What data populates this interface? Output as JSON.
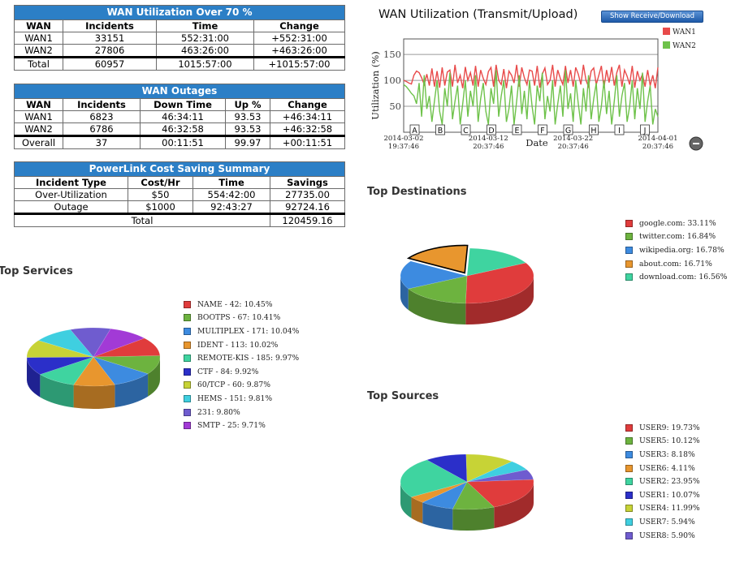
{
  "utilization_table": {
    "title": "WAN Utilization Over 70 %",
    "headers": [
      "WAN",
      "Incidents",
      "Time",
      "Change"
    ],
    "rows": [
      [
        "WAN1",
        "33151",
        "552:31:00",
        "+552:31:00"
      ],
      [
        "WAN2",
        "27806",
        "463:26:00",
        "+463:26:00"
      ],
      [
        "Total",
        "60957",
        "1015:57:00",
        "+1015:57:00"
      ]
    ]
  },
  "outages_table": {
    "title": "WAN Outages",
    "headers": [
      "WAN",
      "Incidents",
      "Down Time",
      "Up %",
      "Change"
    ],
    "rows": [
      [
        "WAN1",
        "6823",
        "46:34:11",
        "93.53",
        "+46:34:11"
      ],
      [
        "WAN2",
        "6786",
        "46:32:58",
        "93.53",
        "+46:32:58"
      ],
      [
        "Overall",
        "37",
        "00:11:51",
        "99.97",
        "+00:11:51"
      ]
    ]
  },
  "cost_table": {
    "title": "PowerLink Cost Saving Summary",
    "headers": [
      "Incident Type",
      "Cost/Hr",
      "Time",
      "Savings"
    ],
    "rows": [
      [
        "Over-Utilization",
        "$50",
        "554:42:00",
        "27735.00"
      ],
      [
        "Outage",
        "$1000",
        "92:43:27",
        "92724.16"
      ]
    ],
    "total_label": "Total",
    "total_value": "120459.16"
  },
  "line_chart": {
    "button_label": "Show Receive/Download",
    "zoom_icon": "minus-circle-icon"
  },
  "colors": {
    "wan1": "#e84a4a",
    "wan2": "#6ec24a",
    "table_header": "#2c7fc6"
  },
  "chart_data": [
    {
      "type": "line",
      "title": "WAN Utilization (Transmit/Upload)",
      "xlabel": "Date",
      "ylabel": "Utilization (%)",
      "ylim": [
        0,
        180
      ],
      "yticks": [
        "50",
        "100",
        "150"
      ],
      "xticks": [
        "2014-03-02\n19:37:46",
        "2014-03-12\n20:37:46",
        "2014-03-22\n20:37:46",
        "2014-04-01\n20:37:46"
      ],
      "x_range": [
        "2014-03-02",
        "2014-04-01"
      ],
      "grid": true,
      "legend_position": "top-right",
      "annotations": [
        "A",
        "B",
        "C",
        "D",
        "E",
        "F",
        "G",
        "H",
        "I",
        "J"
      ],
      "series": [
        {
          "name": "WAN1",
          "values": [
            100,
            98,
            95,
            93,
            110,
            118,
            115,
            105,
            92,
            112,
            90,
            123,
            88,
            118,
            86,
            125,
            90,
            116,
            120,
            88,
            130,
            95,
            110,
            85,
            126,
            100,
            115,
            90,
            128,
            88,
            120,
            104,
            92,
            117,
            125,
            88,
            130,
            100,
            92,
            122,
            85,
            118,
            110,
            95,
            130,
            88,
            125,
            105,
            92,
            120,
            118,
            90,
            128,
            86,
            112,
            124,
            92,
            100,
            130,
            88,
            120,
            104,
            92,
            128,
            95,
            120,
            88,
            125,
            112,
            92,
            130,
            100,
            88,
            118,
            124,
            92,
            110,
            128,
            86,
            120,
            96,
            126,
            90,
            115,
            130,
            88,
            120,
            108,
            92,
            128,
            86,
            118,
            100,
            112,
            88,
            120,
            90,
            110,
            85,
            125
          ]
        },
        {
          "name": "WAN2",
          "values": [
            92,
            88,
            82,
            75,
            70,
            55,
            95,
            30,
            110,
            45,
            70,
            20,
            60,
            100,
            40,
            15,
            85,
            50,
            115,
            25,
            60,
            90,
            15,
            55,
            100,
            30,
            80,
            50,
            110,
            20,
            65,
            95,
            40,
            15,
            85,
            55,
            120,
            30,
            70,
            100,
            20,
            45,
            90,
            15,
            60,
            110,
            35,
            80,
            25,
            100,
            50,
            15,
            90,
            60,
            115,
            25,
            70,
            40,
            100,
            15,
            55,
            90,
            30,
            120,
            45,
            75,
            20,
            100,
            55,
            15,
            85,
            40,
            110,
            25,
            65,
            95,
            20,
            50,
            100,
            35,
            80,
            15,
            60,
            110,
            30,
            70,
            95,
            20,
            50,
            100,
            25,
            85,
            45,
            115,
            20,
            60,
            90,
            15,
            45,
            30
          ]
        }
      ]
    },
    {
      "type": "pie",
      "title": "Top Services",
      "labels": [
        "NAME - 42: 10.45%",
        "BOOTPS - 67: 10.41%",
        "MULTIPLEX - 171: 10.04%",
        "IDENT - 113: 10.02%",
        "REMOTE-KIS - 185: 9.97%",
        "CTF - 84: 9.92%",
        "60/TCP - 60: 9.87%",
        "HEMS - 151: 9.81%",
        "231: 9.80%",
        "SMTP - 25: 9.71%"
      ],
      "values": [
        10.45,
        10.41,
        10.04,
        10.02,
        9.97,
        9.92,
        9.87,
        9.81,
        9.8,
        9.71
      ],
      "colors": [
        "#e03c3c",
        "#6db33f",
        "#3d8be0",
        "#e8962e",
        "#3fd4a0",
        "#2b2fc9",
        "#c7d336",
        "#3fcfe0",
        "#6f5ccf",
        "#a23ad6"
      ]
    },
    {
      "type": "pie",
      "title": "Top Destinations",
      "labels": [
        "google.com: 33.11%",
        "twitter.com: 16.84%",
        "wikipedia.org: 16.78%",
        "about.com: 16.71%",
        "download.com: 16.56%"
      ],
      "values": [
        33.11,
        16.84,
        16.78,
        16.71,
        16.56
      ],
      "colors": [
        "#e03c3c",
        "#6db33f",
        "#3d8be0",
        "#e8962e",
        "#3fd4a0"
      ]
    },
    {
      "type": "pie",
      "title": "Top Sources",
      "labels": [
        "USER9: 19.73%",
        "USER5: 10.12%",
        "USER3: 8.18%",
        "USER6: 4.11%",
        "USER2: 23.95%",
        "USER1: 10.07%",
        "USER4: 11.99%",
        "USER7: 5.94%",
        "USER8: 5.90%"
      ],
      "values": [
        19.73,
        10.12,
        8.18,
        4.11,
        23.95,
        10.07,
        11.99,
        5.94,
        5.9
      ],
      "colors": [
        "#e03c3c",
        "#6db33f",
        "#3d8be0",
        "#e8962e",
        "#3fd4a0",
        "#2b2fc9",
        "#c7d336",
        "#3fcfe0",
        "#6f5ccf"
      ]
    }
  ]
}
